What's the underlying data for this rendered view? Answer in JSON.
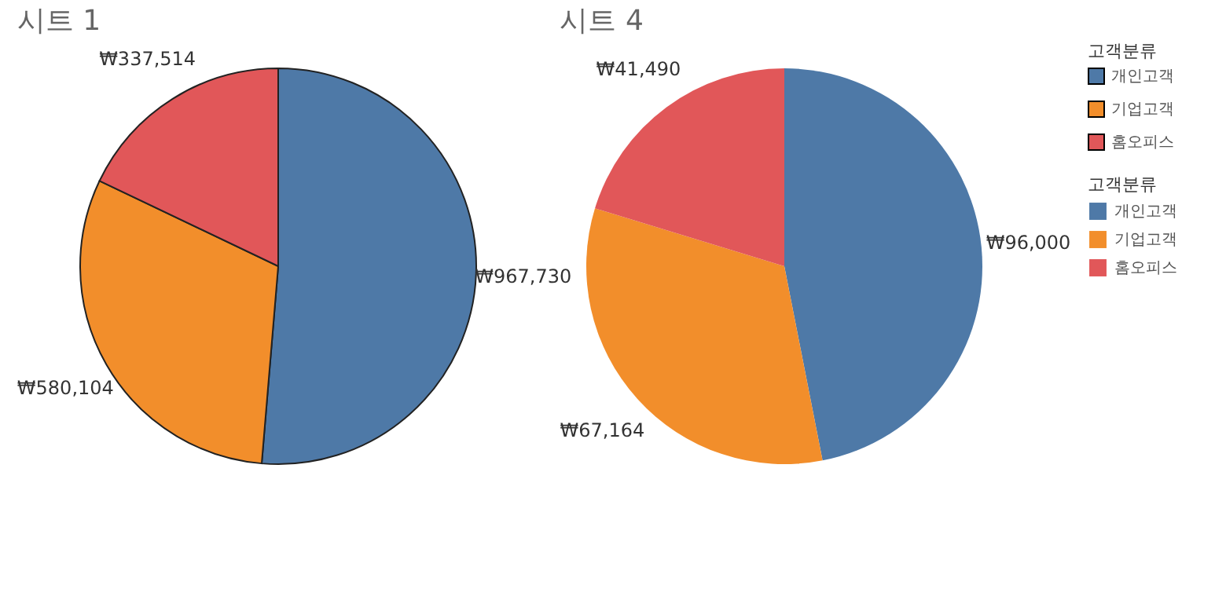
{
  "chart_data": [
    {
      "type": "pie",
      "title": "시트 1",
      "legend_title": "고객분류",
      "legend": "right",
      "categories": [
        "개인고객",
        "기업고객",
        "홈오피스"
      ],
      "values": [
        967730,
        580104,
        337514
      ],
      "colors": [
        "#4e79a7",
        "#f28e2b",
        "#e15759"
      ],
      "value_labels": [
        "₩967,730",
        "₩580,104",
        "₩337,514"
      ]
    },
    {
      "type": "pie",
      "title": "시트 4",
      "legend_title": "고객분류",
      "legend": "right",
      "categories": [
        "개인고객",
        "기업고객",
        "홈오피스"
      ],
      "values": [
        96000,
        67164,
        41490
      ],
      "colors": [
        "#4e79a7",
        "#f28e2b",
        "#e15759"
      ],
      "value_labels": [
        "₩96,000",
        "₩67,164",
        "₩41,490"
      ]
    }
  ]
}
